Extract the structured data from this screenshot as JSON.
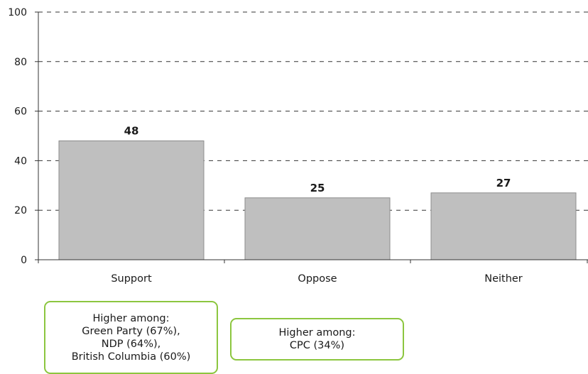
{
  "chart_data": {
    "type": "bar",
    "categories": [
      "Support",
      "Oppose",
      "Neither"
    ],
    "values": [
      48,
      25,
      27
    ],
    "ylim": [
      0,
      100
    ],
    "yticks": [
      0,
      20,
      40,
      60,
      80,
      100
    ],
    "grid": true,
    "colors": {
      "bar": "#bfbfbf",
      "bar_border": "#8c8c8c",
      "grid": "#333333"
    }
  },
  "notes": [
    {
      "lines": [
        "Higher among:",
        "Green Party (67%),",
        "NDP (64%),",
        "British Columbia (60%)"
      ]
    },
    {
      "lines": [
        "Higher among:",
        "CPC (34%)"
      ]
    }
  ]
}
